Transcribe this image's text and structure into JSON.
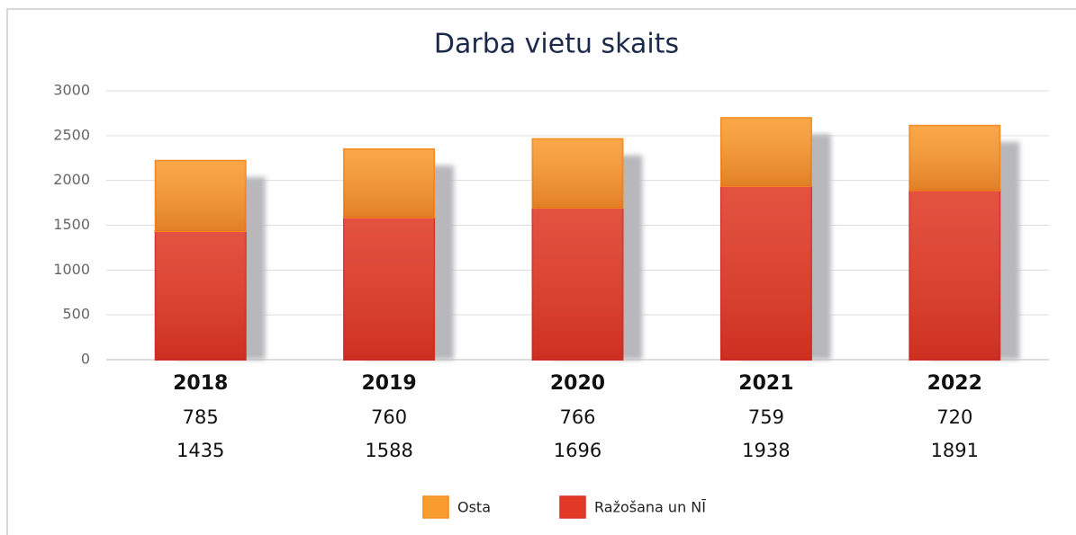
{
  "chart_data": {
    "type": "stacked-bar",
    "title": "Darba vietu skaits",
    "categories": [
      "2018",
      "2019",
      "2020",
      "2021",
      "2022"
    ],
    "series": [
      {
        "name": "Ražošana un NĪ",
        "color": "#e03a26",
        "values": [
          1435,
          1588,
          1696,
          1938,
          1891
        ]
      },
      {
        "name": "Osta",
        "color": "#f99c2e",
        "values": [
          785,
          760,
          766,
          759,
          720
        ]
      }
    ],
    "ylim": [
      0,
      3000
    ],
    "yticks": [
      0,
      500,
      1000,
      1500,
      2000,
      2500,
      3000
    ],
    "grid": true
  }
}
